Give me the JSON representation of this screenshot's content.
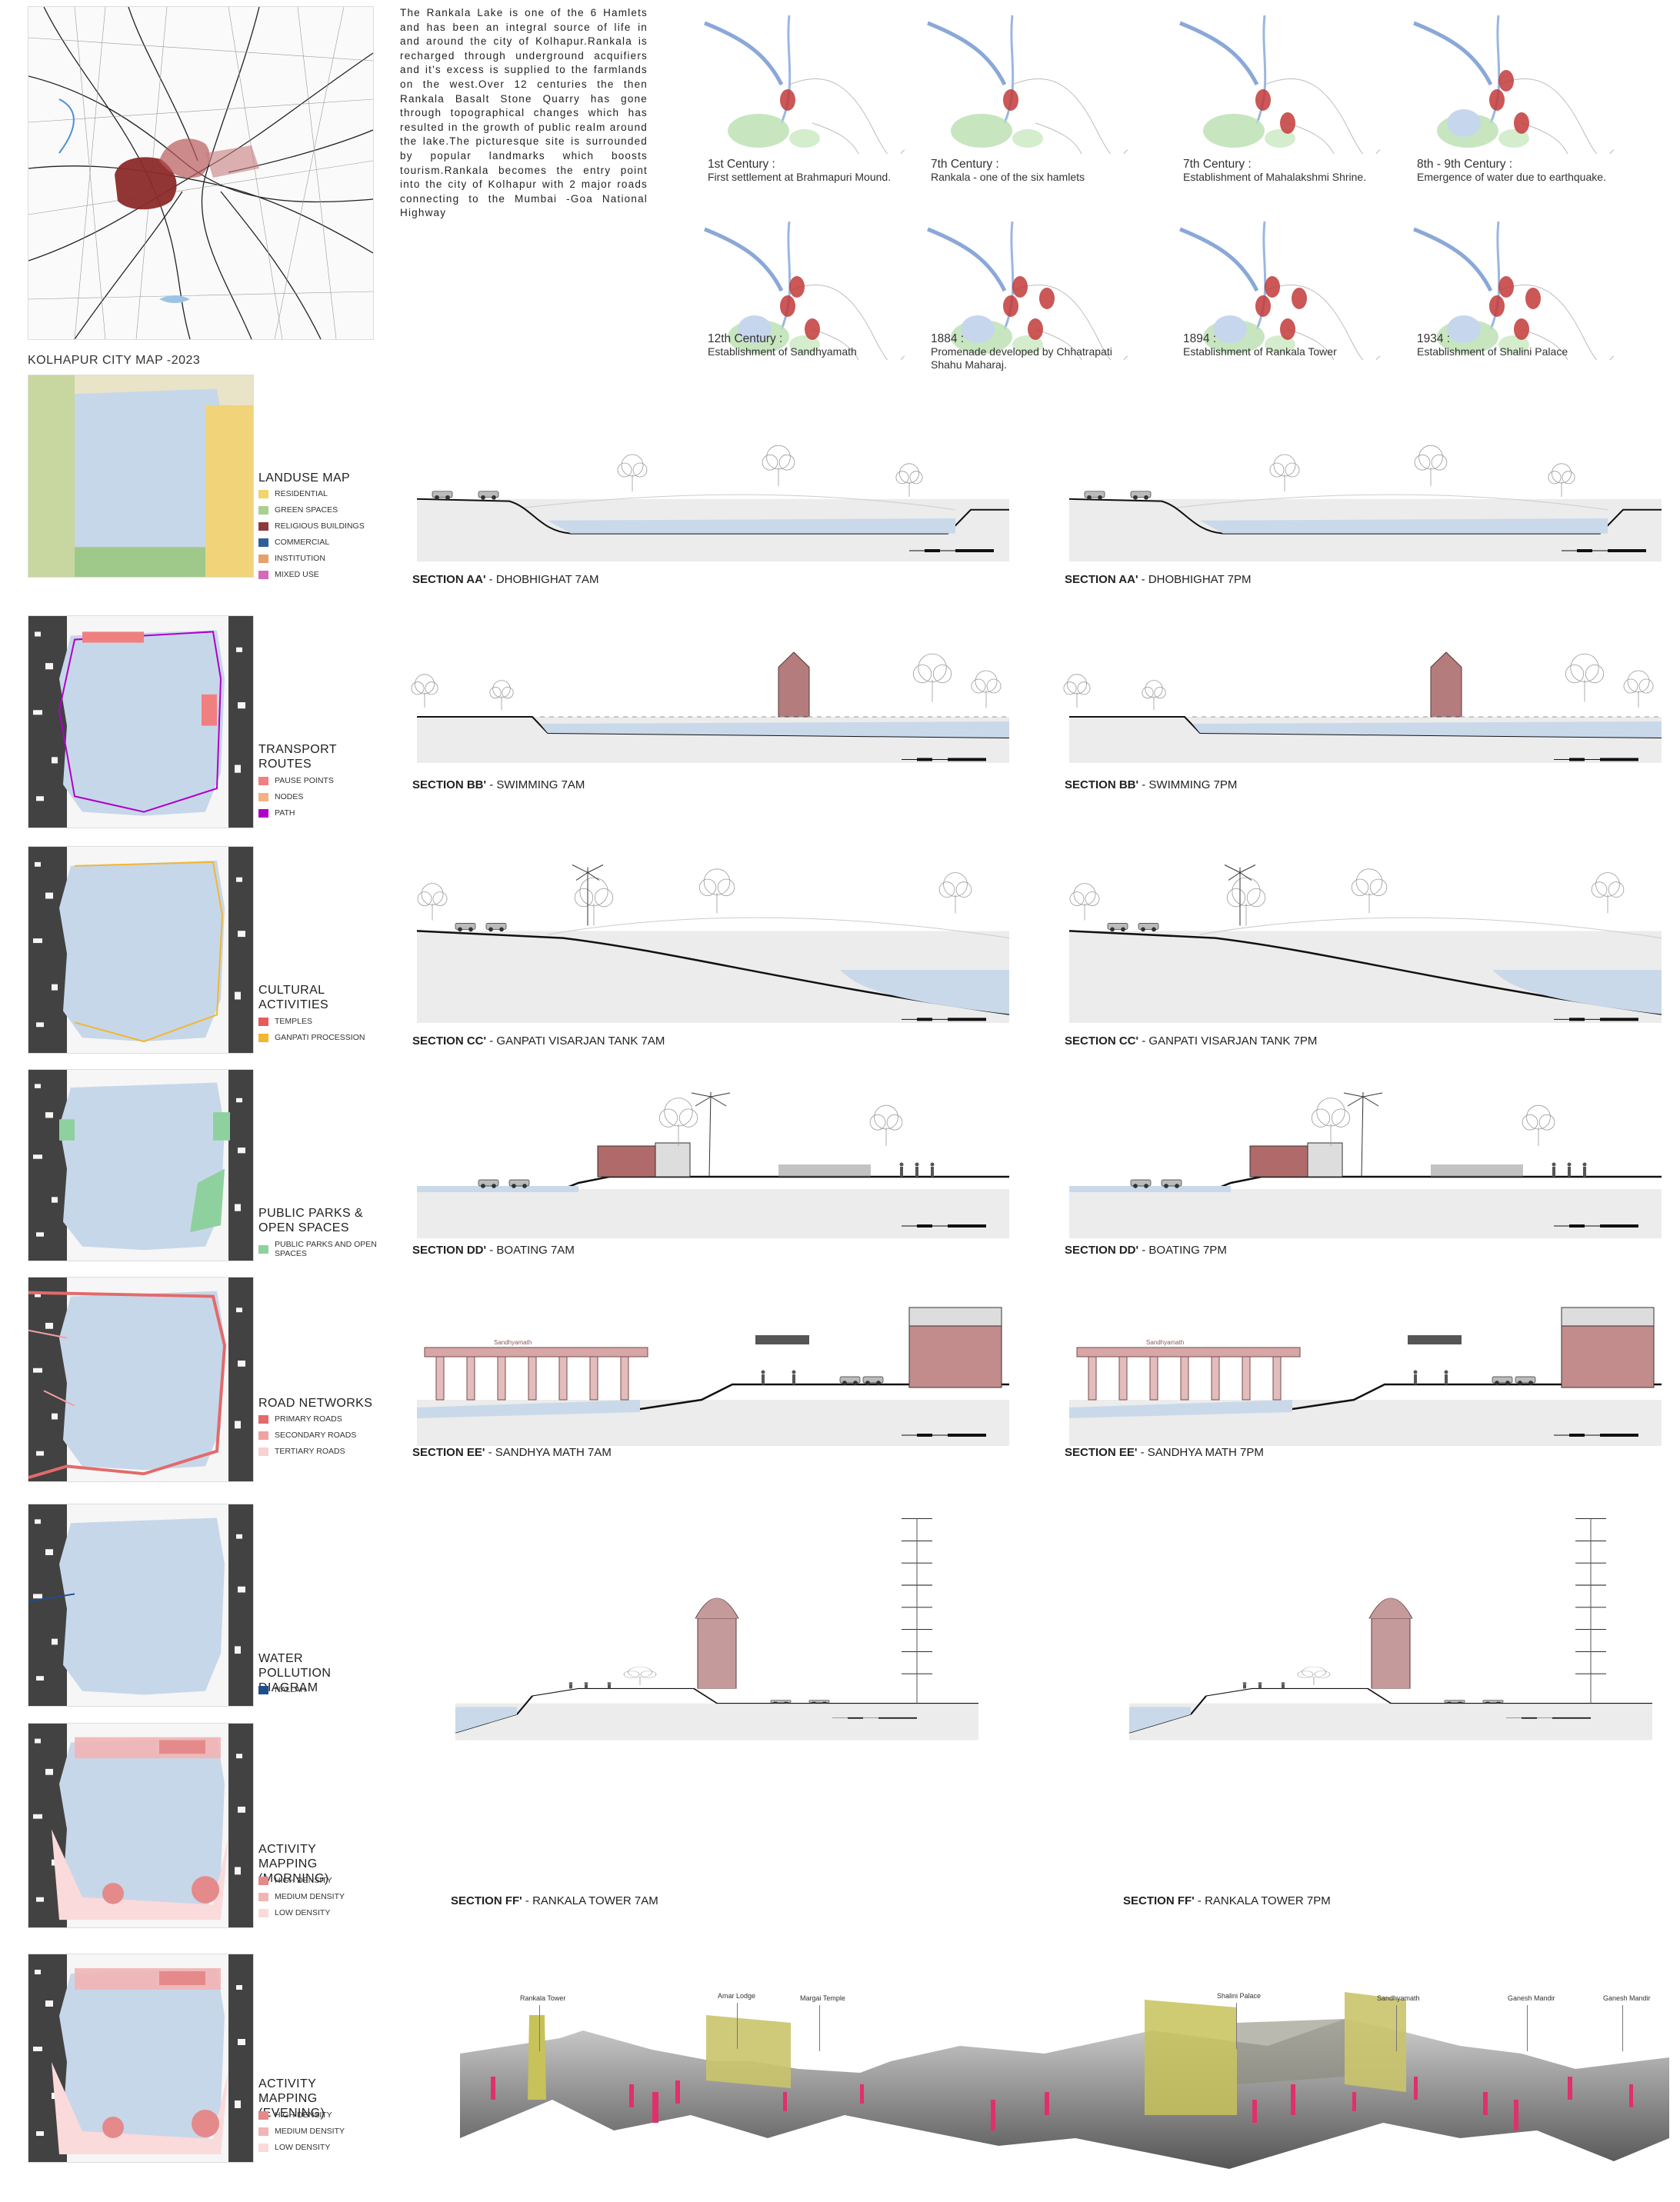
{
  "intro_text": "The Rankala Lake is one of the 6 Hamlets and has been an integral source of life in and around the city of Kolhapur.Rankala is recharged through underground acquifiers and it's excess is supplied to the farmlands on the west.Over 12 centuries the then Rankala Basalt Stone Quarry has gone through topographical changes which has resulted in the growth of public realm around the lake.The picturesque site is surrounded by popular landmarks which boosts tourism.Rankala becomes the entry point into the city of Kolhapur with 2 major roads connecting to the Mumbai -Goa National Highway",
  "city_map_caption": "KOLHAPUR CITY MAP -2023",
  "timeline": [
    {
      "title": "1st Century :",
      "desc": "First settlement at Brahmapuri Mound."
    },
    {
      "title": "7th Century :",
      "desc": "Rankala - one of the six hamlets"
    },
    {
      "title": "7th Century :",
      "desc": "Establishment of Mahalakshmi Shrine."
    },
    {
      "title": "8th - 9th Century :",
      "desc": "Emergence of water due to earthquake."
    },
    {
      "title": "12th Century :",
      "desc": "Establishment of Sandhyamath"
    },
    {
      "title": "1884 :",
      "desc": "Promenade developed by Chhatrapati Shahu Maharaj."
    },
    {
      "title": "1894 :",
      "desc": "Establishment of Rankala Tower"
    },
    {
      "title": "1934 :",
      "desc": "Establishment of Shalini Palace"
    }
  ],
  "legends": [
    {
      "title": "LANDUSE MAP",
      "items": [
        {
          "label": "RESIDENTIAL",
          "color": "#f3d36b"
        },
        {
          "label": "GREEN SPACES",
          "color": "#a9d08e"
        },
        {
          "label": "RELIGIOUS BUILDINGS",
          "color": "#8e3a3a"
        },
        {
          "label": "COMMERCIAL",
          "color": "#2f5f98"
        },
        {
          "label": "INSTITUTION",
          "color": "#e6a06a"
        },
        {
          "label": "MIXED USE",
          "color": "#d46ab8"
        }
      ]
    },
    {
      "title": "TRANSPORT ROUTES",
      "items": [
        {
          "label": "PAUSE POINTS",
          "color": "#f08080"
        },
        {
          "label": "NODES",
          "color": "#f4b183"
        },
        {
          "label": "PATH",
          "color": "#b000c8"
        }
      ]
    },
    {
      "title": "CULTURAL ACTIVITIES",
      "items": [
        {
          "label": "TEMPLES",
          "color": "#e85a5a"
        },
        {
          "label": "GANPATI PROCESSION",
          "color": "#f2b630"
        }
      ]
    },
    {
      "title": "PUBLIC PARKS & OPEN SPACES",
      "items": [
        {
          "label": "PUBLIC PARKS AND OPEN SPACES",
          "color": "#8fd19e"
        }
      ]
    },
    {
      "title": "ROAD NETWORKS",
      "items": [
        {
          "label": "PRIMARY ROADS",
          "color": "#e36a6a"
        },
        {
          "label": "SECONDARY ROADS",
          "color": "#f1a1a1"
        },
        {
          "label": "TERTIARY ROADS",
          "color": "#f8d2d2"
        }
      ]
    },
    {
      "title": "WATER POLLUTION DIAGRAM",
      "items": [
        {
          "label": "NALLAH",
          "color": "#1f4e8c"
        }
      ]
    },
    {
      "title": "ACTIVITY MAPPING (MORNING)",
      "items": [
        {
          "label": "HIGH DENSITY",
          "color": "#e48a8a"
        },
        {
          "label": "MEDIUM DENSITY",
          "color": "#f2b5b5"
        },
        {
          "label": "LOW DENSITY",
          "color": "#fadada"
        }
      ]
    },
    {
      "title": "ACTIVITY MAPPING (EVENING)",
      "items": [
        {
          "label": "HIGH DENSITY",
          "color": "#e48a8a"
        },
        {
          "label": "MEDIUM DENSITY",
          "color": "#f2b5b5"
        },
        {
          "label": "LOW DENSITY",
          "color": "#fadada"
        }
      ]
    }
  ],
  "sections": [
    {
      "bold": "SECTION AA'",
      "rest": " - DHOBHIGHAT 7AM"
    },
    {
      "bold": "SECTION AA'",
      "rest": " - DHOBHIGHAT 7PM"
    },
    {
      "bold": "SECTION BB'",
      "rest": " - SWIMMING 7AM"
    },
    {
      "bold": "SECTION BB'",
      "rest": " - SWIMMING 7PM"
    },
    {
      "bold": "SECTION CC'",
      "rest": " - GANPATI VISARJAN TANK 7AM"
    },
    {
      "bold": "SECTION CC'",
      "rest": " - GANPATI VISARJAN TANK 7PM"
    },
    {
      "bold": "SECTION DD'",
      "rest": " - BOATING 7AM"
    },
    {
      "bold": "SECTION DD'",
      "rest": " - BOATING 7PM"
    },
    {
      "bold": "SECTION EE'",
      "rest": " - SANDHYA MATH 7AM"
    },
    {
      "bold": "SECTION EE'",
      "rest": " - SANDHYA MATH 7PM"
    },
    {
      "bold": "SECTION FF'",
      "rest": " - RANKALA TOWER 7AM"
    },
    {
      "bold": "SECTION FF'",
      "rest": " - RANKALA TOWER 7PM"
    }
  ],
  "section_ee_label": "Sandhyamath",
  "panorama_labels": [
    "Rankala Tower",
    "Amar Lodge",
    "Margai Temple",
    "Shalini Palace",
    "Sandhyamath",
    "Ganesh Mandir",
    "Ganesh Mandir"
  ]
}
